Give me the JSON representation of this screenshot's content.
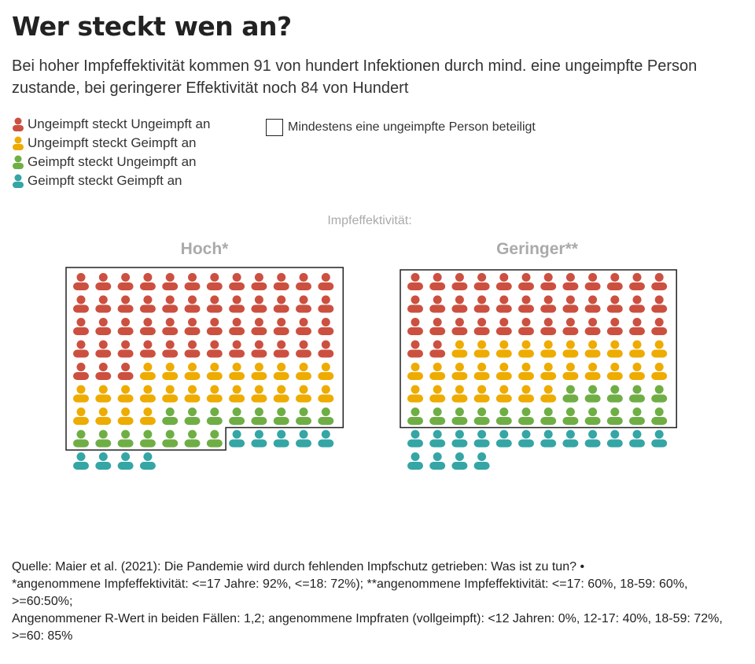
{
  "title": "Wer steckt wen an?",
  "subtitle": "Bei hoher Impfeffektivität kommen 91 von hundert Infektionen durch mind. eine ungeimpfte Person zustande, bei geringerer Effektivität noch 84 von Hundert",
  "legend": [
    {
      "label": "Ungeimpft steckt Ungeimpft an",
      "color": "#cc5040"
    },
    {
      "label": "Ungeimpft steckt Geimpft an",
      "color": "#eeab00"
    },
    {
      "label": "Geimpft steckt Ungeimpft an",
      "color": "#6fae45"
    },
    {
      "label": "Geimpft steckt Geimpft an",
      "color": "#35a5a5"
    }
  ],
  "box_legend": "Mindestens eine ungeimpfte Person beteiligt",
  "group_label": "Impfeffektivität:",
  "chart_data": [
    {
      "type": "waffle",
      "title": "Hoch*",
      "unit": "Infektionen von 100",
      "categories": [
        "Ungeimpft steckt Ungeimpft an",
        "Ungeimpft steckt Geimpft an",
        "Geimpft steckt Ungeimpft an",
        "Geimpft steckt Geimpft an"
      ],
      "values": [
        51,
        25,
        15,
        9
      ],
      "outlined_total": 91
    },
    {
      "type": "waffle",
      "title": "Geringer**",
      "unit": "Infektionen von 100",
      "categories": [
        "Ungeimpft steckt Ungeimpft an",
        "Ungeimpft steckt Geimpft an",
        "Geimpft steckt Ungeimpft an",
        "Geimpft steckt Geimpft an"
      ],
      "values": [
        38,
        29,
        17,
        16
      ],
      "outlined_total": 84
    }
  ],
  "notes": [
    "Quelle: Maier et al. (2021): Die Pandemie wird durch fehlenden Impfschutz getrieben: Was ist zu tun? •",
    "*angenommene Impfeffektivität: <=17 Jahre: 92%, <=18: 72%); **angenommene Impfeffektivität: <=17: 60%, 18-59: 60%, >=60:50%;",
    "Angenommener R-Wert in beiden Fällen: 1,2; angenommene Impfraten (vollgeimpft): <12 Jahren: 0%, 12-17: 40%, 18-59: 72%, >=60: 85%"
  ]
}
